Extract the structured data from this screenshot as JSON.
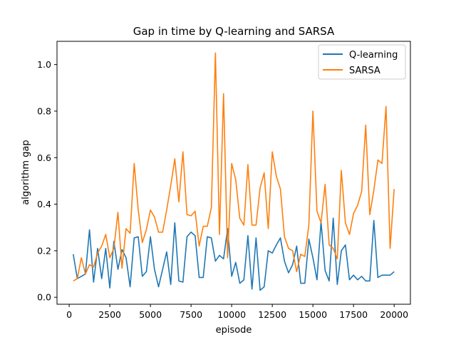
{
  "chart_data": {
    "type": "line",
    "title": "Gap in time by Q-learning and SARSA",
    "xlabel": "episode",
    "ylabel": "algorithm gap",
    "xlim": [
      -750,
      21000
    ],
    "ylim": [
      -0.03,
      1.1
    ],
    "xticks": [
      0,
      2500,
      5000,
      7500,
      10000,
      12500,
      15000,
      17500,
      20000
    ],
    "xtick_labels": [
      "0",
      "2500",
      "5000",
      "7500",
      "10000",
      "12500",
      "15000",
      "17500",
      "20000"
    ],
    "yticks": [
      0.0,
      0.2,
      0.4,
      0.6,
      0.8,
      1.0
    ],
    "ytick_labels": [
      "0.0",
      "0.2",
      "0.4",
      "0.6",
      "0.8",
      "1.0"
    ],
    "grid": false,
    "legend_position": "top-right",
    "x": [
      250,
      500,
      750,
      1000,
      1250,
      1500,
      1750,
      2000,
      2250,
      2500,
      2750,
      3000,
      3250,
      3500,
      3750,
      4000,
      4250,
      4500,
      4750,
      5000,
      5250,
      5500,
      5750,
      6000,
      6250,
      6500,
      6750,
      7000,
      7250,
      7500,
      7750,
      8000,
      8250,
      8500,
      8750,
      9000,
      9250,
      9500,
      9750,
      10000,
      10250,
      10500,
      10750,
      11000,
      11250,
      11500,
      11750,
      12000,
      12250,
      12500,
      12750,
      13000,
      13250,
      13500,
      13750,
      14000,
      14250,
      14500,
      14750,
      15000,
      15250,
      15500,
      15750,
      16000,
      16250,
      16500,
      16750,
      17000,
      17250,
      17500,
      17750,
      18000,
      18250,
      18500,
      18750,
      19000,
      19250,
      19500,
      19750,
      20000
    ],
    "series": [
      {
        "name": "Q-learning",
        "color": "#1f77b4",
        "values": [
          0.185,
          0.08,
          0.09,
          0.1,
          0.29,
          0.065,
          0.21,
          0.08,
          0.21,
          0.04,
          0.24,
          0.12,
          0.205,
          0.17,
          0.045,
          0.255,
          0.26,
          0.09,
          0.11,
          0.26,
          0.12,
          0.045,
          0.12,
          0.195,
          0.055,
          0.32,
          0.07,
          0.065,
          0.26,
          0.28,
          0.265,
          0.085,
          0.085,
          0.26,
          0.255,
          0.155,
          0.18,
          0.165,
          0.295,
          0.09,
          0.15,
          0.06,
          0.075,
          0.265,
          0.035,
          0.255,
          0.03,
          0.045,
          0.2,
          0.19,
          0.225,
          0.255,
          0.155,
          0.105,
          0.14,
          0.22,
          0.06,
          0.06,
          0.25,
          0.17,
          0.075,
          0.325,
          0.115,
          0.07,
          0.34,
          0.055,
          0.2,
          0.225,
          0.075,
          0.095,
          0.075,
          0.09,
          0.07,
          0.07,
          0.33,
          0.085,
          0.095,
          0.095,
          0.095,
          0.11
        ]
      },
      {
        "name": "SARSA",
        "color": "#ff7f0e",
        "values": [
          0.07,
          0.08,
          0.17,
          0.1,
          0.14,
          0.13,
          0.19,
          0.22,
          0.27,
          0.17,
          0.21,
          0.365,
          0.125,
          0.295,
          0.275,
          0.575,
          0.375,
          0.235,
          0.29,
          0.375,
          0.345,
          0.28,
          0.28,
          0.375,
          0.48,
          0.595,
          0.41,
          0.625,
          0.355,
          0.35,
          0.37,
          0.22,
          0.305,
          0.305,
          0.385,
          1.05,
          0.27,
          0.875,
          0.17,
          0.575,
          0.505,
          0.34,
          0.31,
          0.57,
          0.31,
          0.31,
          0.47,
          0.535,
          0.295,
          0.625,
          0.52,
          0.465,
          0.26,
          0.21,
          0.2,
          0.11,
          0.185,
          0.175,
          0.31,
          0.8,
          0.37,
          0.32,
          0.485,
          0.225,
          0.21,
          0.165,
          0.545,
          0.32,
          0.27,
          0.36,
          0.395,
          0.455,
          0.74,
          0.355,
          0.46,
          0.59,
          0.575,
          0.82,
          0.21,
          0.465
        ]
      }
    ]
  }
}
